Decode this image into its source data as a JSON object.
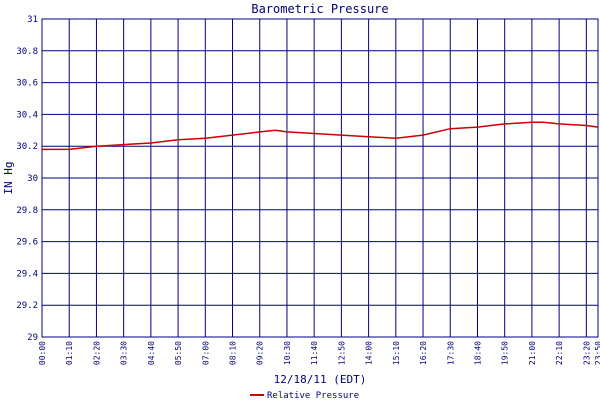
{
  "chart_data": {
    "type": "line",
    "title": "Barometric Pressure",
    "xlabel": "12/18/11 (EDT)",
    "ylabel": "IN Hg",
    "ylim": [
      29,
      31
    ],
    "yticks": [
      "29",
      "29.2",
      "29.4",
      "29.6",
      "29.8",
      "30",
      "30.2",
      "30.4",
      "30.6",
      "30.8",
      "31"
    ],
    "xticks": [
      "00:00",
      "01:10",
      "02:20",
      "03:30",
      "04:40",
      "05:50",
      "07:00",
      "08:10",
      "09:20",
      "10:30",
      "11:40",
      "12:50",
      "14:00",
      "15:10",
      "16:20",
      "17:30",
      "18:40",
      "19:50",
      "21:00",
      "22:10",
      "23:20",
      "23:50"
    ],
    "grid": true,
    "legend_position": "bottom",
    "series": [
      {
        "name": "Relative Pressure",
        "color": "#cc0000",
        "x": [
          "00:00",
          "01:10",
          "02:20",
          "03:30",
          "04:40",
          "05:50",
          "07:00",
          "08:10",
          "09:20",
          "10:00",
          "10:30",
          "11:40",
          "12:50",
          "14:00",
          "15:10",
          "16:20",
          "17:30",
          "18:40",
          "19:50",
          "21:00",
          "21:30",
          "22:10",
          "23:20",
          "23:50"
        ],
        "values": [
          30.18,
          30.18,
          30.2,
          30.21,
          30.22,
          30.24,
          30.25,
          30.27,
          30.29,
          30.3,
          30.29,
          30.28,
          30.27,
          30.26,
          30.25,
          30.27,
          30.31,
          30.32,
          30.34,
          30.35,
          30.35,
          30.34,
          30.33,
          30.32
        ]
      }
    ]
  },
  "colors": {
    "grid": "#000080",
    "frame": "#000080",
    "text": "#000080"
  }
}
